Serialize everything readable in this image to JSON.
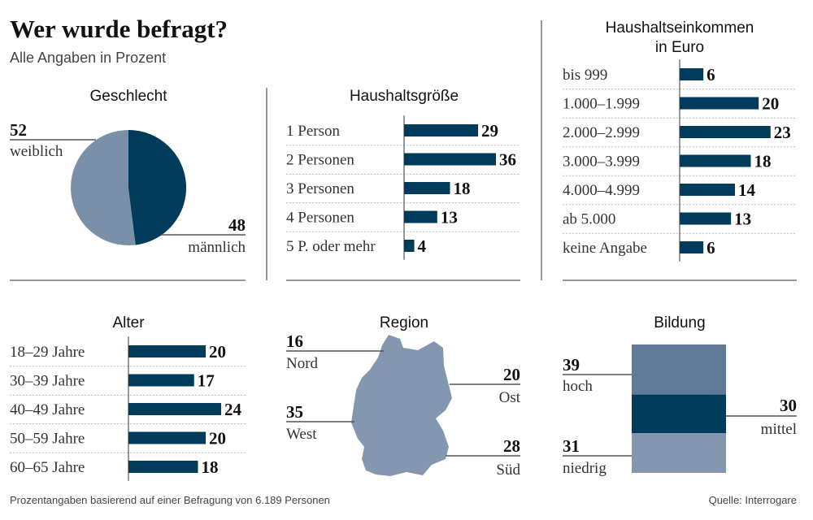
{
  "header": {
    "title": "Wer wurde befragt?",
    "subtitle": "Alle Angaben in Prozent"
  },
  "colors": {
    "dark": "#003b5c",
    "mid": "#607a96",
    "light": "#8497b0",
    "pie_light": "#7a8fa8"
  },
  "footer": {
    "note": "Prozentangaben basierend auf einer Befragung von 6.189 Personen",
    "source": "Quelle: Interrogare"
  },
  "chart_data": [
    {
      "type": "pie",
      "title": "Geschlecht",
      "slices": [
        {
          "label": "weiblich",
          "value": 52
        },
        {
          "label": "männlich",
          "value": 48
        }
      ]
    },
    {
      "type": "bar",
      "title": "Haushaltsgröße",
      "categories": [
        "1 Person",
        "2 Personen",
        "3 Personen",
        "4 Personen",
        "5 P. oder mehr"
      ],
      "values": [
        29,
        36,
        18,
        13,
        4
      ]
    },
    {
      "type": "bar",
      "title": "Haushaltseinkommen in Euro",
      "title_lines": [
        "Haushaltseinkommen",
        "in Euro"
      ],
      "categories": [
        "bis 999",
        "1.000–1.999",
        "2.000–2.999",
        "3.000–3.999",
        "4.000–4.999",
        "ab 5.000",
        "keine Angabe"
      ],
      "values": [
        6,
        20,
        23,
        18,
        14,
        13,
        6
      ]
    },
    {
      "type": "bar",
      "title": "Alter",
      "categories": [
        "18–29 Jahre",
        "30–39 Jahre",
        "40–49 Jahre",
        "50–59 Jahre",
        "60–65 Jahre"
      ],
      "values": [
        20,
        17,
        24,
        20,
        18
      ]
    },
    {
      "type": "map",
      "title": "Region",
      "regions": [
        {
          "label": "Nord",
          "value": 16
        },
        {
          "label": "West",
          "value": 35
        },
        {
          "label": "Ost",
          "value": 20
        },
        {
          "label": "Süd",
          "value": 28
        }
      ]
    },
    {
      "type": "stacked-bar",
      "title": "Bildung",
      "segments": [
        {
          "label": "hoch",
          "value": 39
        },
        {
          "label": "mittel",
          "value": 30
        },
        {
          "label": "niedrig",
          "value": 31
        }
      ]
    }
  ]
}
